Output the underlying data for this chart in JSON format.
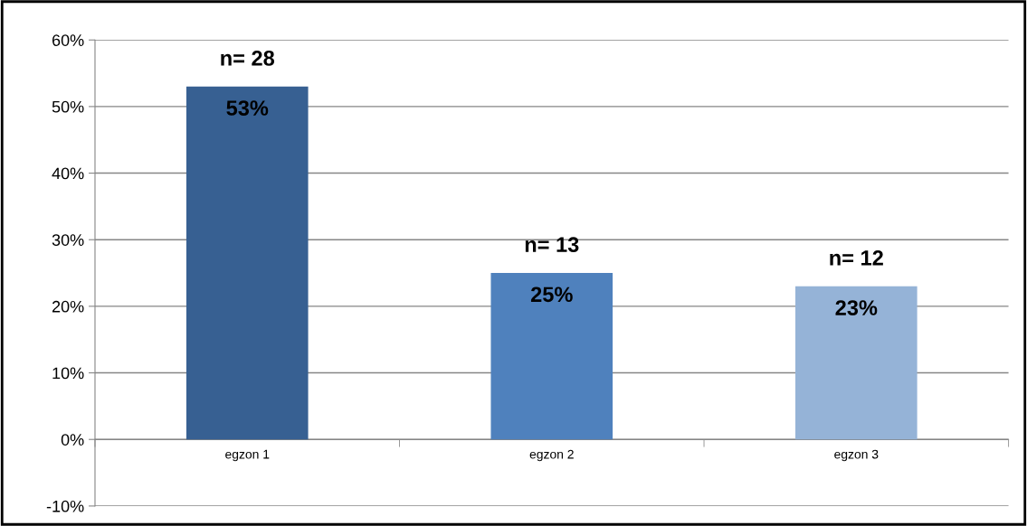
{
  "chart_data": {
    "type": "bar",
    "categories": [
      "egzon 1",
      "egzon 2",
      "egzon 3"
    ],
    "values": [
      53,
      25,
      23
    ],
    "colors": [
      "#376092",
      "#4f81bd",
      "#95b3d7"
    ],
    "value_labels": [
      "53%",
      "25%",
      "23%"
    ],
    "ylim": [
      -10,
      60
    ],
    "yticks": [
      {
        "value": -10,
        "label": "-10%"
      },
      {
        "value": 0,
        "label": "0%"
      },
      {
        "value": 10,
        "label": "10%"
      },
      {
        "value": 20,
        "label": "20%"
      },
      {
        "value": 30,
        "label": "30%"
      },
      {
        "value": 40,
        "label": "40%"
      },
      {
        "value": 50,
        "label": "50%"
      },
      {
        "value": 60,
        "label": "60%"
      }
    ],
    "grid": "y",
    "annotations": [
      "n= 28",
      "n= 13",
      "n= 12"
    ]
  }
}
